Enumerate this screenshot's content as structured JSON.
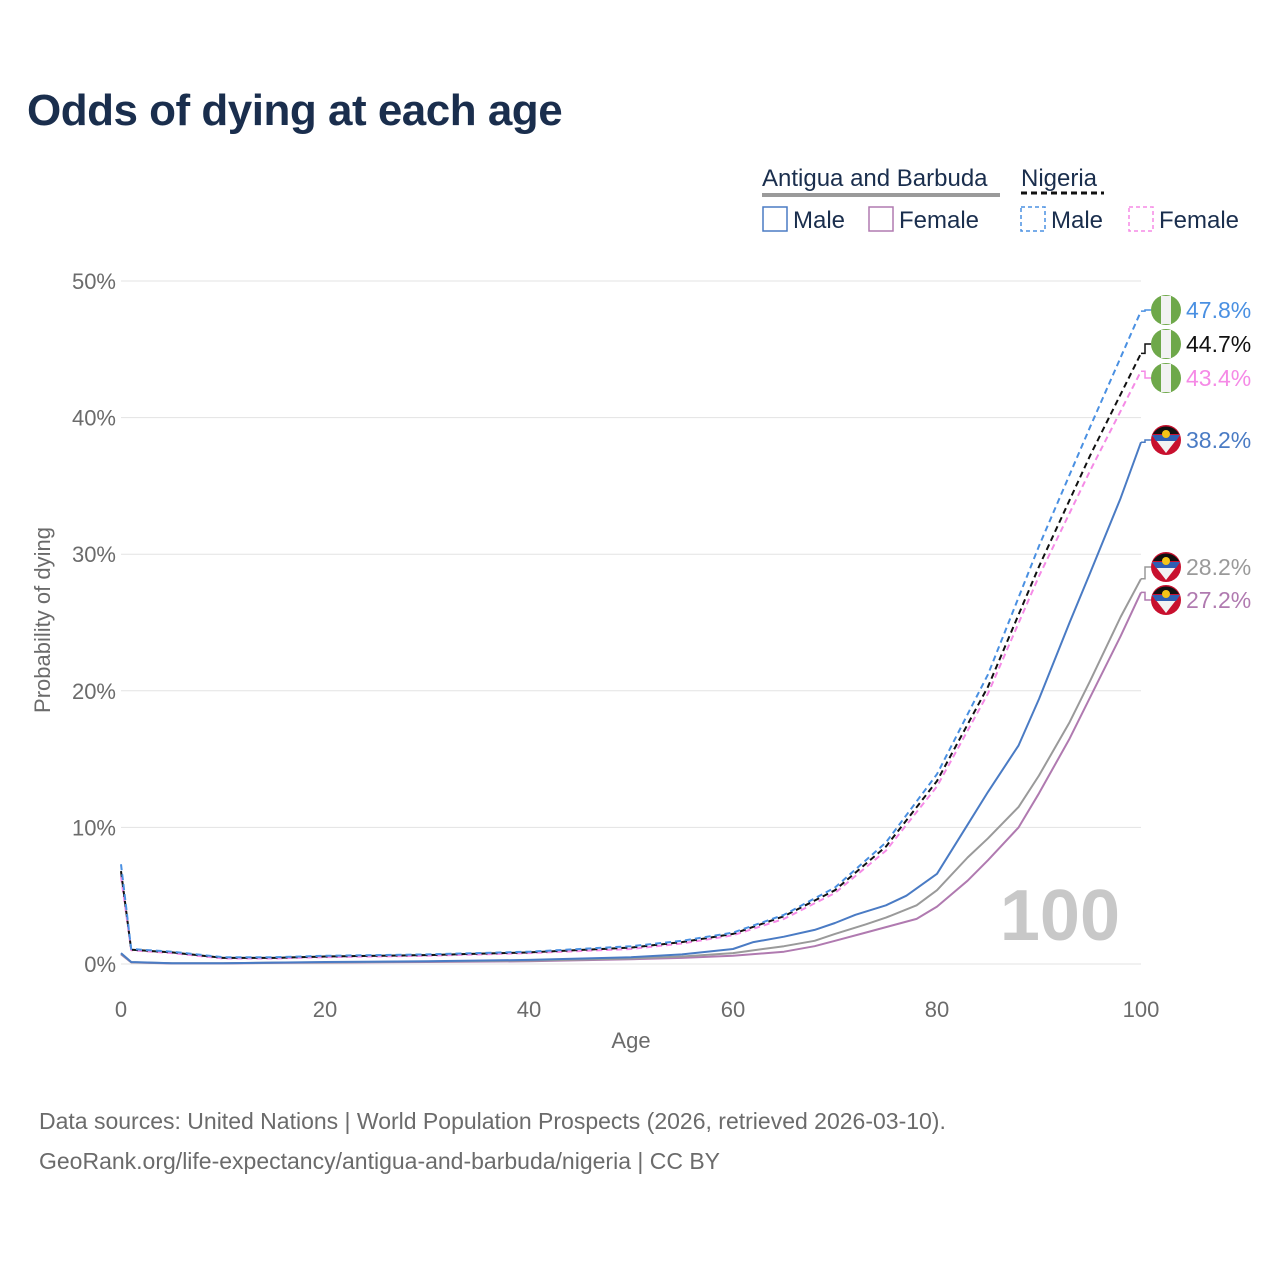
{
  "chart_data": {
    "type": "line",
    "title": "Odds of dying at each age",
    "xlabel": "Age",
    "ylabel": "Probability of dying",
    "xlim": [
      0,
      100
    ],
    "ylim": [
      0,
      50
    ],
    "x_ticks": [
      "0",
      "20",
      "40",
      "60",
      "80",
      "100"
    ],
    "y_ticks": [
      "0%",
      "10%",
      "20%",
      "30%",
      "40%",
      "50%"
    ],
    "grid": "horizontal",
    "watermark": "100",
    "legend": {
      "groups": [
        {
          "name": "Antigua and Barbuda",
          "line_style": "solid",
          "color": "#9a9a9a",
          "items": [
            {
              "label": "Male",
              "color": "#4a7bc4"
            },
            {
              "label": "Female",
              "color": "#b07ab0"
            }
          ]
        },
        {
          "name": "Nigeria",
          "line_style": "dashed",
          "color": "#111111",
          "items": [
            {
              "label": "Male",
              "color": "#4a90e2"
            },
            {
              "label": "Female",
              "color": "#f58ae6"
            }
          ]
        }
      ]
    },
    "series": [
      {
        "name": "Nigeria Male",
        "country": "Nigeria",
        "style": "dashed",
        "color": "#4a90e2",
        "end_label": "47.8%",
        "points": [
          [
            0,
            7.3
          ],
          [
            1,
            1.1
          ],
          [
            5,
            0.9
          ],
          [
            10,
            0.5
          ],
          [
            15,
            0.5
          ],
          [
            20,
            0.6
          ],
          [
            30,
            0.7
          ],
          [
            40,
            0.9
          ],
          [
            50,
            1.3
          ],
          [
            55,
            1.7
          ],
          [
            60,
            2.3
          ],
          [
            65,
            3.6
          ],
          [
            70,
            5.6
          ],
          [
            75,
            8.9
          ],
          [
            80,
            13.9
          ],
          [
            85,
            21.2
          ],
          [
            90,
            30.6
          ],
          [
            95,
            39.3
          ],
          [
            100,
            47.8
          ]
        ]
      },
      {
        "name": "Nigeria Total",
        "country": "Nigeria",
        "style": "dashed",
        "color": "#111111",
        "end_label": "44.7%",
        "points": [
          [
            0,
            6.8
          ],
          [
            1,
            1.05
          ],
          [
            5,
            0.85
          ],
          [
            10,
            0.45
          ],
          [
            15,
            0.45
          ],
          [
            20,
            0.55
          ],
          [
            30,
            0.65
          ],
          [
            40,
            0.85
          ],
          [
            50,
            1.2
          ],
          [
            55,
            1.6
          ],
          [
            60,
            2.2
          ],
          [
            65,
            3.5
          ],
          [
            70,
            5.4
          ],
          [
            75,
            8.6
          ],
          [
            80,
            13.4
          ],
          [
            85,
            20.3
          ],
          [
            90,
            29.1
          ],
          [
            95,
            37.2
          ],
          [
            100,
            44.7
          ]
        ]
      },
      {
        "name": "Nigeria Female",
        "country": "Nigeria",
        "style": "dashed",
        "color": "#f58ae6",
        "end_label": "43.4%",
        "points": [
          [
            0,
            6.4
          ],
          [
            1,
            1.0
          ],
          [
            5,
            0.8
          ],
          [
            10,
            0.4
          ],
          [
            15,
            0.4
          ],
          [
            20,
            0.5
          ],
          [
            30,
            0.6
          ],
          [
            40,
            0.8
          ],
          [
            50,
            1.1
          ],
          [
            55,
            1.5
          ],
          [
            60,
            2.1
          ],
          [
            65,
            3.3
          ],
          [
            70,
            5.2
          ],
          [
            75,
            8.3
          ],
          [
            80,
            13.0
          ],
          [
            85,
            19.8
          ],
          [
            90,
            28.4
          ],
          [
            95,
            36.1
          ],
          [
            100,
            43.4
          ]
        ]
      },
      {
        "name": "Antigua and Barbuda Male",
        "country": "Antigua and Barbuda",
        "style": "solid",
        "color": "#4a7bc4",
        "end_label": "38.2%",
        "points": [
          [
            0,
            0.8
          ],
          [
            1,
            0.15
          ],
          [
            5,
            0.05
          ],
          [
            10,
            0.05
          ],
          [
            15,
            0.1
          ],
          [
            20,
            0.15
          ],
          [
            30,
            0.2
          ],
          [
            40,
            0.3
          ],
          [
            50,
            0.5
          ],
          [
            55,
            0.7
          ],
          [
            60,
            1.1
          ],
          [
            62,
            1.6
          ],
          [
            65,
            2.0
          ],
          [
            68,
            2.5
          ],
          [
            70,
            3.0
          ],
          [
            72,
            3.6
          ],
          [
            75,
            4.3
          ],
          [
            77,
            5.0
          ],
          [
            80,
            6.6
          ],
          [
            83,
            10.2
          ],
          [
            85,
            12.6
          ],
          [
            88,
            16.0
          ],
          [
            90,
            19.4
          ],
          [
            93,
            25.0
          ],
          [
            95,
            28.6
          ],
          [
            98,
            34.1
          ],
          [
            100,
            38.2
          ]
        ]
      },
      {
        "name": "Antigua and Barbuda Total",
        "country": "Antigua and Barbuda",
        "style": "solid",
        "color": "#9a9a9a",
        "end_label": "28.2%",
        "points": [
          [
            0,
            0.75
          ],
          [
            1,
            0.13
          ],
          [
            5,
            0.05
          ],
          [
            10,
            0.05
          ],
          [
            15,
            0.1
          ],
          [
            20,
            0.12
          ],
          [
            30,
            0.18
          ],
          [
            40,
            0.25
          ],
          [
            50,
            0.4
          ],
          [
            55,
            0.55
          ],
          [
            60,
            0.8
          ],
          [
            65,
            1.3
          ],
          [
            68,
            1.7
          ],
          [
            70,
            2.2
          ],
          [
            73,
            2.9
          ],
          [
            75,
            3.4
          ],
          [
            78,
            4.3
          ],
          [
            80,
            5.4
          ],
          [
            83,
            7.8
          ],
          [
            85,
            9.2
          ],
          [
            88,
            11.5
          ],
          [
            90,
            13.8
          ],
          [
            93,
            17.7
          ],
          [
            95,
            20.7
          ],
          [
            98,
            25.4
          ],
          [
            100,
            28.2
          ]
        ]
      },
      {
        "name": "Antigua and Barbuda Female",
        "country": "Antigua and Barbuda",
        "style": "solid",
        "color": "#b07ab0",
        "end_label": "27.2%",
        "points": [
          [
            0,
            0.7
          ],
          [
            1,
            0.12
          ],
          [
            5,
            0.04
          ],
          [
            10,
            0.04
          ],
          [
            15,
            0.08
          ],
          [
            20,
            0.1
          ],
          [
            30,
            0.15
          ],
          [
            40,
            0.2
          ],
          [
            50,
            0.35
          ],
          [
            55,
            0.45
          ],
          [
            60,
            0.6
          ],
          [
            65,
            0.9
          ],
          [
            68,
            1.3
          ],
          [
            70,
            1.7
          ],
          [
            73,
            2.3
          ],
          [
            75,
            2.7
          ],
          [
            78,
            3.3
          ],
          [
            80,
            4.2
          ],
          [
            83,
            6.1
          ],
          [
            85,
            7.6
          ],
          [
            88,
            10.0
          ],
          [
            90,
            12.5
          ],
          [
            93,
            16.5
          ],
          [
            95,
            19.5
          ],
          [
            98,
            24.0
          ],
          [
            100,
            27.2
          ]
        ]
      }
    ]
  },
  "source": {
    "line1": "Data sources: United Nations | World Population Prospects (2026, retrieved 2026-03-10).",
    "line2": "GeoRank.org/life-expectancy/antigua-and-barbuda/nigeria | CC BY"
  }
}
